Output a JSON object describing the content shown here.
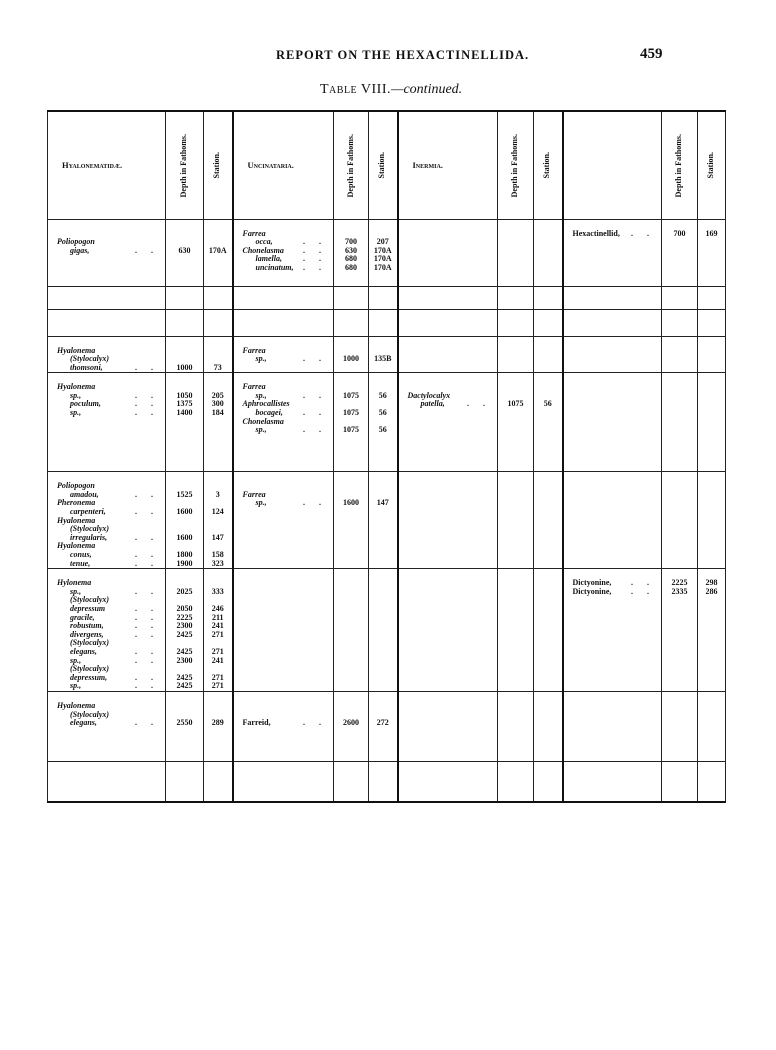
{
  "running_head": "REPORT ON THE HEXACTINELLIDA.",
  "page_number": "459",
  "table_title": {
    "label": "Table VIII.",
    "suffix": "—continued."
  },
  "headers": {
    "groups": [
      "Hyalonematidæ.",
      "Uncinataria.",
      "Inermia.",
      ""
    ],
    "depth": "Depth in Fathoms.",
    "station": "Station."
  },
  "rows": [
    {
      "cells": [
        [
          {
            "t": ""
          },
          {
            "t": "Poliopogon",
            "k": "g"
          },
          {
            "t": "gigas,",
            "k": "s",
            "d": "630",
            "s": "170A"
          }
        ],
        [
          {
            "t": "Farrea",
            "k": "g"
          },
          {
            "t": "occa,",
            "k": "s",
            "d": "700",
            "s": "207"
          },
          {
            "t": "Chonelasma",
            "k": "g",
            "d": "630",
            "s": "170A"
          },
          {
            "t": "lamella,",
            "k": "s",
            "d": "680",
            "s": "170A"
          },
          {
            "t": "uncinatum,",
            "k": "s",
            "d": "680",
            "s": "170A"
          }
        ],
        [],
        [
          {
            "t": "Hexactinellid,",
            "k": "r",
            "d": "700",
            "s": "169"
          }
        ]
      ]
    },
    {
      "cells": [
        [],
        [],
        [],
        []
      ]
    },
    {
      "cells": [
        [],
        [],
        [],
        []
      ]
    },
    {
      "cells": [
        [
          {
            "t": "Hyalonema",
            "k": "g"
          },
          {
            "t": "(Stylocalyx)",
            "k": "s"
          },
          {
            "t": "thomsoni,",
            "k": "s",
            "d": "1000",
            "s": "73"
          }
        ],
        [
          {
            "t": "Farrea",
            "k": "g"
          },
          {
            "t": "sp.,",
            "k": "s",
            "d": "1000",
            "s": "135B"
          }
        ],
        [],
        []
      ]
    },
    {
      "cells": [
        [
          {
            "t": "Hyalonema",
            "k": "g"
          },
          {
            "t": "sp.,",
            "k": "s",
            "d": "1050",
            "s": "205"
          },
          {
            "t": "poculum,",
            "k": "s",
            "d": "1375",
            "s": "300"
          },
          {
            "t": "sp.,",
            "k": "s",
            "d": "1400",
            "s": "184"
          }
        ],
        [
          {
            "t": "Farrea",
            "k": "g"
          },
          {
            "t": "sp.,",
            "k": "s",
            "d": "1075",
            "s": "56"
          },
          {
            "t": "Aphrocallistes",
            "k": "g"
          },
          {
            "t": "bocagei,",
            "k": "s",
            "d": "1075",
            "s": "56"
          },
          {
            "t": "Chonelasma",
            "k": "g"
          },
          {
            "t": "sp.,",
            "k": "s",
            "d": "1075",
            "s": "56"
          }
        ],
        [
          {
            "t": ""
          },
          {
            "t": "Dactylocalyx",
            "k": "g"
          },
          {
            "t": "patella,",
            "k": "s",
            "d": "1075",
            "s": "56"
          }
        ],
        []
      ]
    },
    {
      "cells": [
        [
          {
            "t": "Poliopogon",
            "k": "g"
          },
          {
            "t": "amadou,",
            "k": "s",
            "d": "1525",
            "s": "3"
          },
          {
            "t": "Pheronema",
            "k": "g"
          },
          {
            "t": "carpenteri,",
            "k": "s",
            "d": "1600",
            "s": "124"
          },
          {
            "t": "Hyalonema",
            "k": "g"
          },
          {
            "t": "(Stylocalyx)",
            "k": "s"
          },
          {
            "t": "irregularis,",
            "k": "s",
            "d": "1600",
            "s": "147"
          },
          {
            "t": "Hyalonema",
            "k": "g"
          },
          {
            "t": "conus,",
            "k": "s",
            "d": "1800",
            "s": "158"
          },
          {
            "t": "tenue,",
            "k": "s",
            "d": "1900",
            "s": "323"
          }
        ],
        [
          {
            "t": ""
          },
          {
            "t": "Farrea",
            "k": "g"
          },
          {
            "t": "sp.,",
            "k": "s",
            "d": "1600",
            "s": "147"
          }
        ],
        [],
        []
      ]
    },
    {
      "cells": [
        [
          {
            "t": "Hylonema",
            "k": "g"
          },
          {
            "t": "sp.,",
            "k": "s",
            "d": "2025",
            "s": "333"
          },
          {
            "t": "(Stylocalyx)",
            "k": "s"
          },
          {
            "t": "depressum",
            "k": "s",
            "d": "2050",
            "s": "246"
          },
          {
            "t": "gracile,",
            "k": "s",
            "d": "2225",
            "s": "211"
          },
          {
            "t": "robustum,",
            "k": "s",
            "d": "2300",
            "s": "241"
          },
          {
            "t": "divergens,",
            "k": "s",
            "d": "2425",
            "s": "271"
          },
          {
            "t": "(Stylocalyx)",
            "k": "s"
          },
          {
            "t": "elegans,",
            "k": "s",
            "d": "2425",
            "s": "271"
          },
          {
            "t": "sp.,",
            "k": "s",
            "d": "2300",
            "s": "241"
          },
          {
            "t": "(Stylocalyx)",
            "k": "s"
          },
          {
            "t": "depressum,",
            "k": "s",
            "d": "2425",
            "s": "271"
          },
          {
            "t": "sp.,",
            "k": "s",
            "d": "2425",
            "s": "271"
          }
        ],
        [],
        [],
        [
          {
            "t": "Dictyonine,",
            "k": "r",
            "d": "2225",
            "s": "298"
          },
          {
            "t": "Dictyonine,",
            "k": "r",
            "d": "2335",
            "s": "286"
          }
        ]
      ]
    },
    {
      "cells": [
        [
          {
            "t": "Hyalonema",
            "k": "g"
          },
          {
            "t": "(Stylocalyx)",
            "k": "s"
          },
          {
            "t": "elegans,",
            "k": "s",
            "d": "2550",
            "s": "289"
          }
        ],
        [
          {
            "t": ""
          },
          {
            "t": ""
          },
          {
            "t": "Farreid,",
            "k": "r",
            "d": "2600",
            "s": "272"
          }
        ],
        [],
        []
      ]
    },
    {
      "cells": [
        [],
        [],
        [],
        []
      ]
    }
  ]
}
